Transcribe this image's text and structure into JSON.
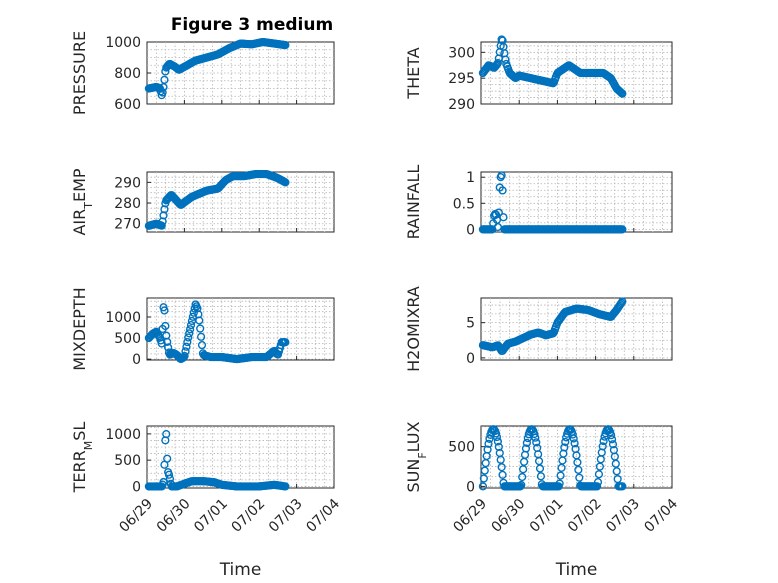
{
  "figure_title": "Figure 3 medium",
  "colors": {
    "marker": "#0072BD",
    "axes": "#262626",
    "grid": "#b5b5b5"
  },
  "chart_data": [
    {
      "type": "scatter",
      "id": "pressure",
      "ylabel": "PRESSURE",
      "ylabel_sub": "",
      "ylim": [
        600,
        1000
      ],
      "yticks": [
        600,
        800,
        1000
      ],
      "xlim": [
        0,
        5
      ],
      "xticks": [],
      "x_start": 0.05,
      "x_end": 3.7,
      "keypoints": [
        [
          0.05,
          700
        ],
        [
          0.25,
          710
        ],
        [
          0.35,
          700
        ],
        [
          0.4,
          650
        ],
        [
          0.45,
          720
        ],
        [
          0.5,
          830
        ],
        [
          0.6,
          860
        ],
        [
          0.75,
          840
        ],
        [
          0.85,
          820
        ],
        [
          1.0,
          840
        ],
        [
          1.3,
          880
        ],
        [
          1.6,
          900
        ],
        [
          1.9,
          920
        ],
        [
          2.2,
          960
        ],
        [
          2.5,
          990
        ],
        [
          2.8,
          985
        ],
        [
          3.1,
          1000
        ],
        [
          3.4,
          990
        ],
        [
          3.7,
          980
        ]
      ],
      "grid": true
    },
    {
      "type": "scatter",
      "id": "theta",
      "ylabel": "THETA",
      "ylabel_sub": "",
      "ylim": [
        290,
        302
      ],
      "yticks": [
        290,
        295,
        300
      ],
      "xlim": [
        0,
        5
      ],
      "xticks": [],
      "x_start": 0.05,
      "x_end": 3.7,
      "keypoints": [
        [
          0.05,
          296
        ],
        [
          0.2,
          297.5
        ],
        [
          0.35,
          297
        ],
        [
          0.45,
          298
        ],
        [
          0.55,
          303
        ],
        [
          0.65,
          298
        ],
        [
          0.75,
          296
        ],
        [
          0.9,
          295
        ],
        [
          1.0,
          295.5
        ],
        [
          1.3,
          295
        ],
        [
          1.6,
          294.5
        ],
        [
          1.9,
          294
        ],
        [
          2.0,
          296
        ],
        [
          2.2,
          297
        ],
        [
          2.3,
          297.5
        ],
        [
          2.6,
          296
        ],
        [
          2.9,
          296
        ],
        [
          3.2,
          296
        ],
        [
          3.4,
          295
        ],
        [
          3.55,
          293
        ],
        [
          3.7,
          292
        ]
      ],
      "grid": true
    },
    {
      "type": "scatter",
      "id": "air_temp",
      "ylabel": "AIR",
      "ylabel_sub": "T",
      "ylabel_tail": "EMP",
      "ylim": [
        266,
        295
      ],
      "yticks": [
        270,
        280,
        290
      ],
      "xlim": [
        0,
        5
      ],
      "xticks": [],
      "x_start": 0.05,
      "x_end": 3.7,
      "keypoints": [
        [
          0.05,
          269
        ],
        [
          0.25,
          270
        ],
        [
          0.4,
          269
        ],
        [
          0.45,
          275
        ],
        [
          0.5,
          281
        ],
        [
          0.65,
          284
        ],
        [
          0.9,
          279
        ],
        [
          1.2,
          283
        ],
        [
          1.6,
          286
        ],
        [
          1.9,
          287
        ],
        [
          2.1,
          291
        ],
        [
          2.3,
          293
        ],
        [
          2.6,
          293
        ],
        [
          2.9,
          294
        ],
        [
          3.2,
          294
        ],
        [
          3.5,
          292
        ],
        [
          3.7,
          290
        ]
      ],
      "grid": true
    },
    {
      "type": "scatter",
      "id": "rainfall",
      "ylabel": "RAINFALL",
      "ylabel_sub": "",
      "ylim": [
        -0.05,
        1.1
      ],
      "yticks": [
        0,
        0.5,
        1
      ],
      "ytick_labels": [
        "0",
        "0.5",
        "1"
      ],
      "xlim": [
        0,
        5
      ],
      "xticks": [],
      "x_start": 0.05,
      "x_end": 3.7,
      "keypoints": [
        [
          0.05,
          0
        ],
        [
          0.3,
          0
        ],
        [
          0.35,
          0.3
        ],
        [
          0.4,
          0.28
        ],
        [
          0.45,
          0
        ],
        [
          0.5,
          0.98
        ],
        [
          0.55,
          1.05
        ],
        [
          0.6,
          0
        ],
        [
          3.7,
          0
        ]
      ],
      "grid": true
    },
    {
      "type": "scatter",
      "id": "mixdepth",
      "ylabel": "MIXDEPTH",
      "ylabel_sub": "",
      "ylim": [
        -20,
        1450
      ],
      "yticks": [
        0,
        500,
        1000
      ],
      "xlim": [
        0,
        5
      ],
      "xticks": [],
      "x_start": 0.05,
      "x_end": 3.7,
      "keypoints": [
        [
          0.05,
          500
        ],
        [
          0.15,
          600
        ],
        [
          0.25,
          650
        ],
        [
          0.35,
          500
        ],
        [
          0.4,
          350
        ],
        [
          0.45,
          1400
        ],
        [
          0.5,
          650
        ],
        [
          0.55,
          350
        ],
        [
          0.6,
          100
        ],
        [
          0.7,
          150
        ],
        [
          0.8,
          100
        ],
        [
          0.9,
          0
        ],
        [
          1.0,
          50
        ],
        [
          1.1,
          500
        ],
        [
          1.2,
          900
        ],
        [
          1.3,
          1300
        ],
        [
          1.35,
          1200
        ],
        [
          1.4,
          900
        ],
        [
          1.5,
          100
        ],
        [
          1.7,
          50
        ],
        [
          2.0,
          50
        ],
        [
          2.4,
          0
        ],
        [
          2.8,
          50
        ],
        [
          3.2,
          50
        ],
        [
          3.4,
          200
        ],
        [
          3.5,
          100
        ],
        [
          3.6,
          400
        ]
      ],
      "grid": true
    },
    {
      "type": "scatter",
      "id": "h2omixra",
      "ylabel": "H2OMIXRA",
      "ylabel_sub": "",
      "ylim": [
        -0.3,
        8.5
      ],
      "yticks": [
        0,
        5
      ],
      "xlim": [
        0,
        5
      ],
      "xticks": [],
      "x_start": 0.05,
      "x_end": 3.7,
      "keypoints": [
        [
          0.05,
          1.8
        ],
        [
          0.3,
          1.5
        ],
        [
          0.45,
          1.8
        ],
        [
          0.55,
          0.9
        ],
        [
          0.7,
          2.0
        ],
        [
          0.9,
          2.3
        ],
        [
          1.1,
          2.8
        ],
        [
          1.3,
          3.3
        ],
        [
          1.5,
          3.6
        ],
        [
          1.7,
          3.2
        ],
        [
          1.9,
          3.5
        ],
        [
          2.0,
          5.0
        ],
        [
          2.2,
          6.5
        ],
        [
          2.5,
          7.0
        ],
        [
          2.8,
          6.8
        ],
        [
          3.1,
          6.2
        ],
        [
          3.4,
          5.8
        ],
        [
          3.55,
          6.8
        ],
        [
          3.7,
          8.0
        ]
      ],
      "grid": true
    },
    {
      "type": "scatter",
      "id": "terr_msl",
      "ylabel": "TERR",
      "ylabel_sub": "M",
      "ylabel_tail": "SL",
      "ylim": [
        -30,
        1150
      ],
      "yticks": [
        0,
        500,
        1000
      ],
      "xlim": [
        0,
        5
      ],
      "xticks": [
        0,
        1,
        2,
        3,
        4,
        5
      ],
      "xtick_labels": [
        "06/29",
        "06/30",
        "07/01",
        "07/02",
        "07/03",
        "07/04"
      ],
      "xlabel": "Time",
      "x_start": 0.05,
      "x_end": 3.7,
      "keypoints": [
        [
          0.05,
          0
        ],
        [
          0.4,
          0
        ],
        [
          0.45,
          100
        ],
        [
          0.5,
          1050
        ],
        [
          0.52,
          980
        ],
        [
          0.55,
          300
        ],
        [
          0.6,
          200
        ],
        [
          0.65,
          0
        ],
        [
          0.8,
          0
        ],
        [
          1.0,
          50
        ],
        [
          1.2,
          100
        ],
        [
          1.5,
          100
        ],
        [
          1.8,
          80
        ],
        [
          2.0,
          30
        ],
        [
          2.4,
          0
        ],
        [
          3.0,
          0
        ],
        [
          3.4,
          30
        ],
        [
          3.7,
          0
        ]
      ],
      "grid": true
    },
    {
      "type": "scatter",
      "id": "sun_flux",
      "ylabel": "SUN",
      "ylabel_sub": "F",
      "ylabel_tail": "LUX",
      "ylim": [
        -20,
        760
      ],
      "yticks": [
        0,
        500
      ],
      "xlim": [
        0,
        5
      ],
      "xticks": [
        0,
        1,
        2,
        3,
        4,
        5
      ],
      "xtick_labels": [
        "06/29",
        "06/30",
        "07/01",
        "07/02",
        "07/03",
        "07/04"
      ],
      "xlabel": "Time",
      "x_start": 0.05,
      "x_end": 3.7,
      "diurnal": {
        "period": 1.0,
        "day_start": 0.05,
        "day_end": 0.6,
        "peak": 720,
        "offset": 0
      },
      "grid": true
    }
  ]
}
